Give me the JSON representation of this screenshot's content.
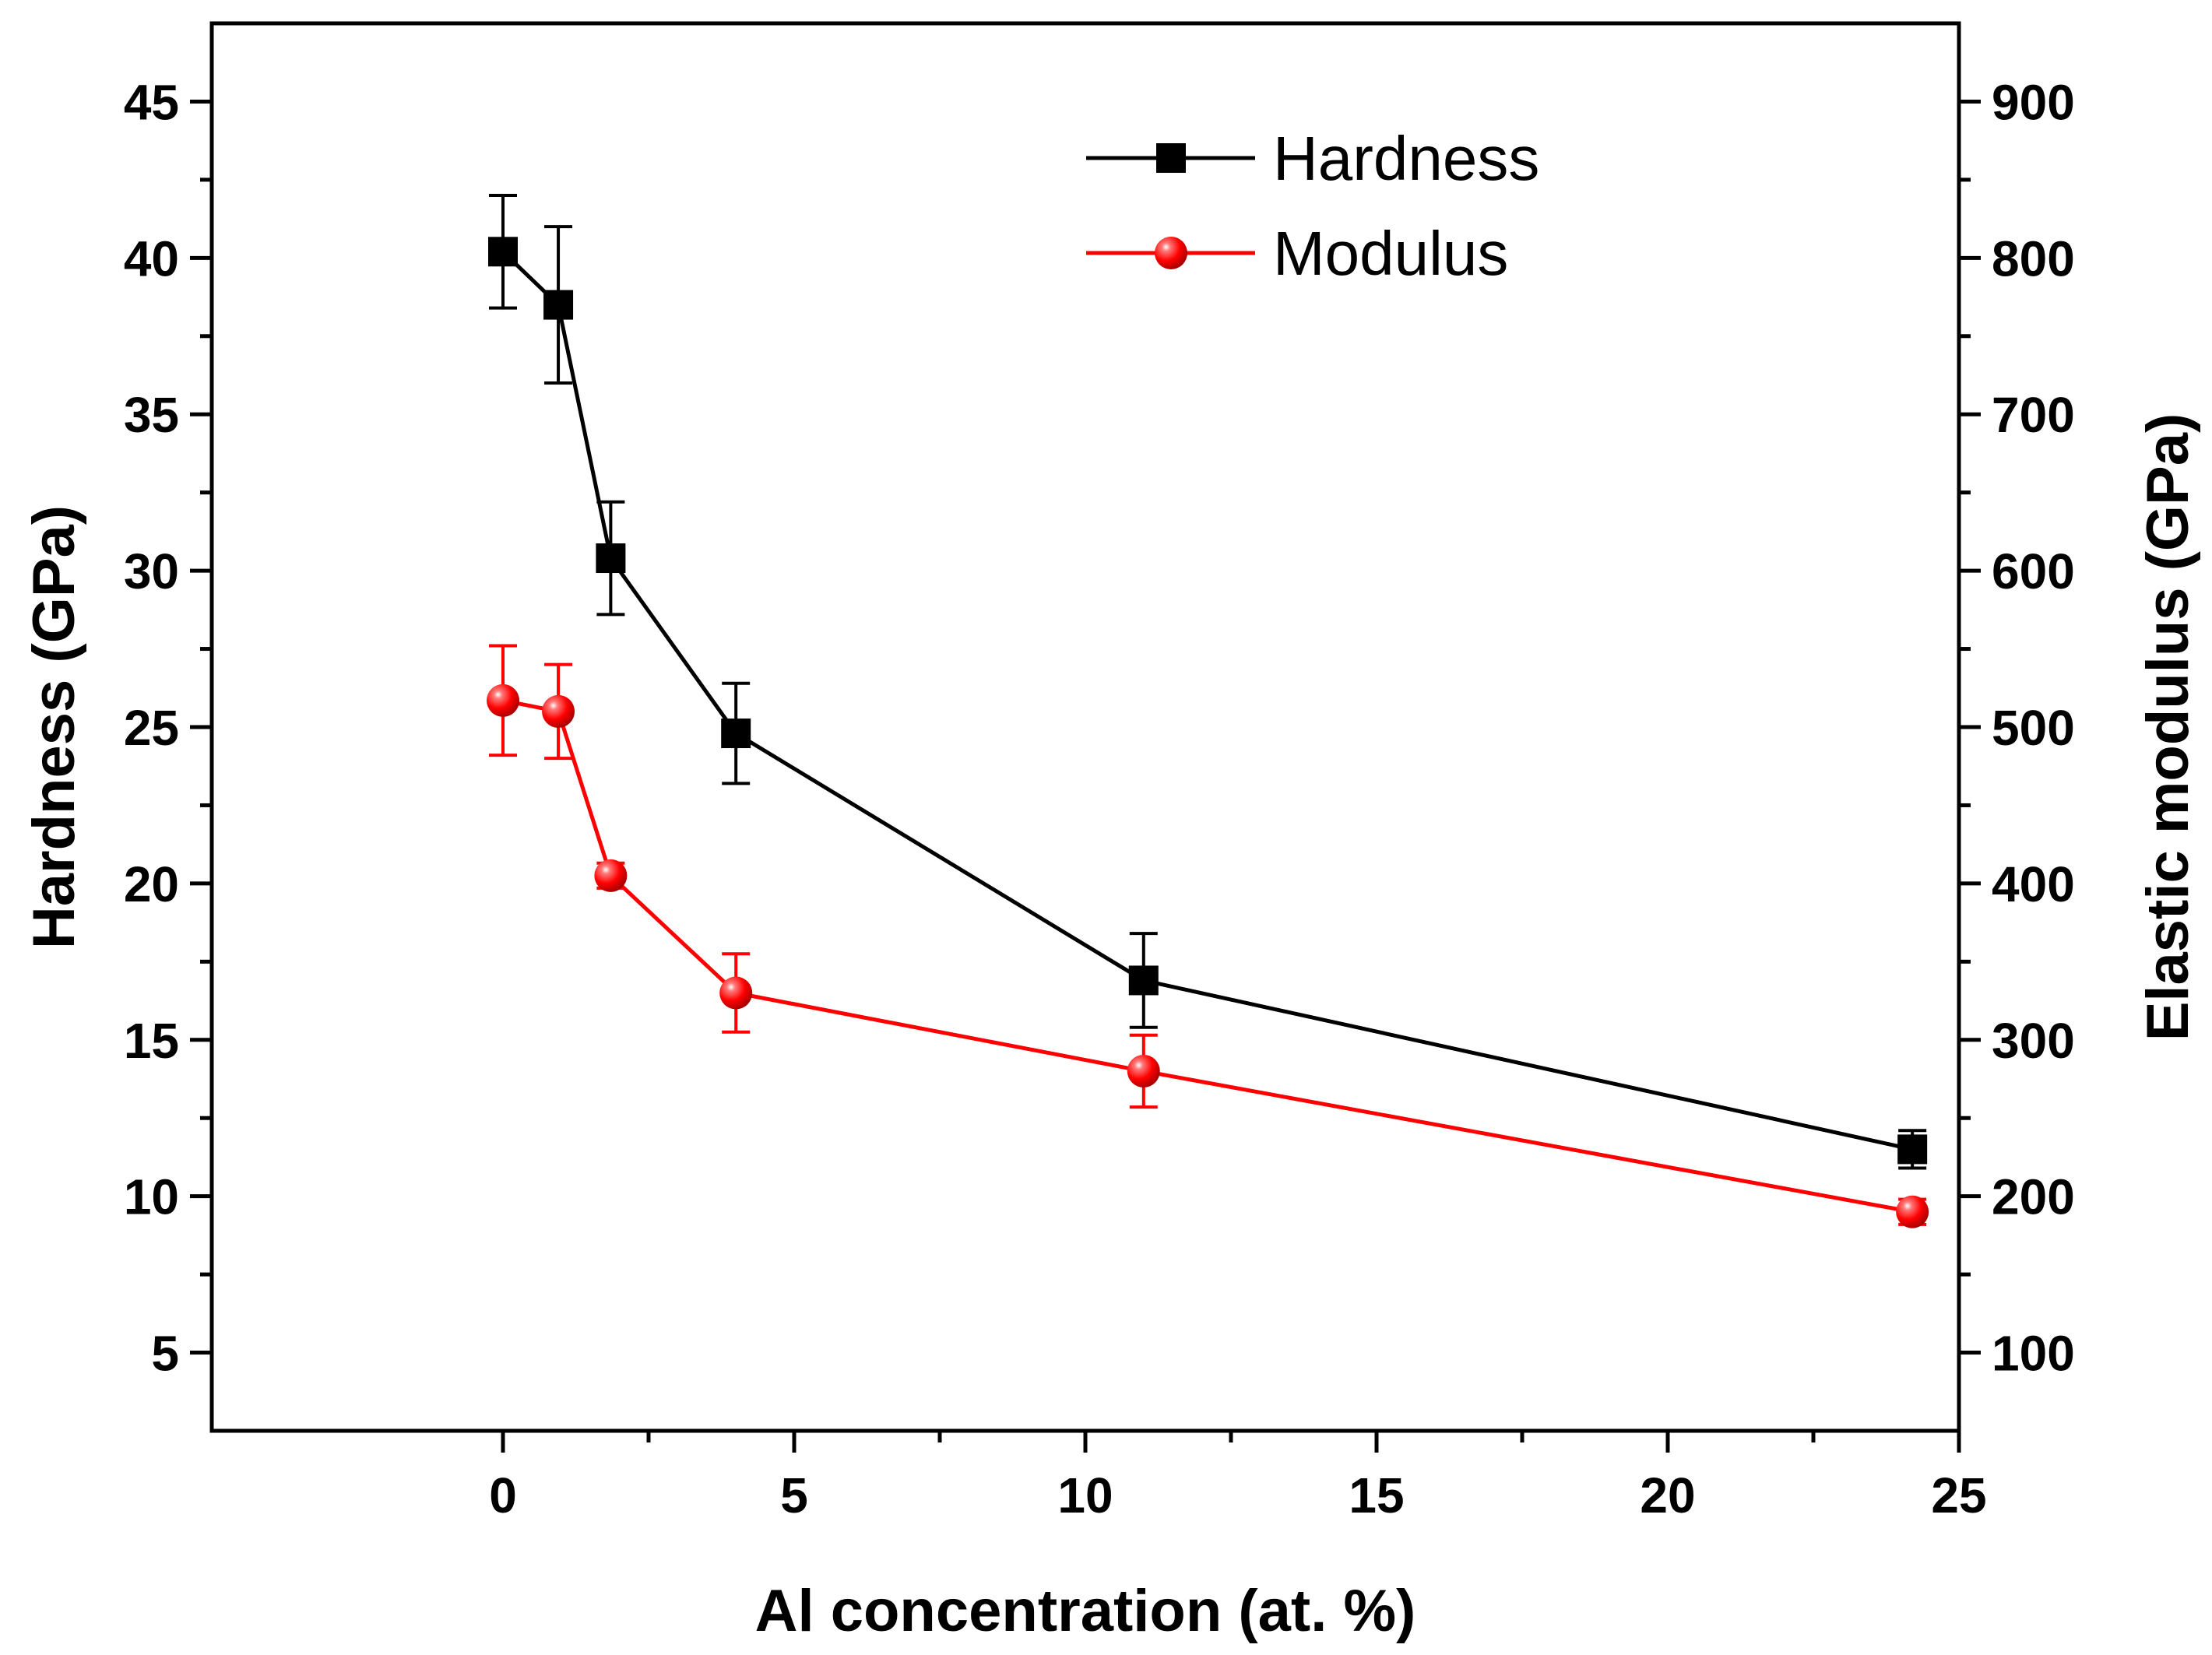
{
  "chart_data": {
    "type": "line",
    "title": "",
    "xlabel": "Al concentration (at. %)",
    "ylabel_left": "Hardness (GPa)",
    "ylabel_right": "Elastic modulus (GPa)",
    "xlim": [
      -5,
      25
    ],
    "ylim_left": [
      2.5,
      47.5
    ],
    "ylim_right": [
      50,
      950
    ],
    "xticks": [
      0,
      5,
      10,
      15,
      20,
      25
    ],
    "xtick_labels": [
      "0",
      "5",
      "10",
      "15",
      "20",
      "25"
    ],
    "yticks_left": [
      5,
      10,
      15,
      20,
      25,
      30,
      35,
      40,
      45
    ],
    "ytick_labels_left": [
      "5",
      "10",
      "15",
      "20",
      "25",
      "30",
      "35",
      "40",
      "45"
    ],
    "yticks_right": [
      100,
      200,
      300,
      400,
      500,
      600,
      700,
      800,
      900
    ],
    "ytick_labels_right": [
      "100",
      "200",
      "300",
      "400",
      "500",
      "600",
      "700",
      "800",
      "900"
    ],
    "grid": false,
    "legend_position": "top-right",
    "series": [
      {
        "name": "Hardness",
        "axis": "left",
        "color": "#000000",
        "marker": "square",
        "x": [
          0,
          0.95,
          1.85,
          4.0,
          11.0,
          24.2
        ],
        "y": [
          40.2,
          38.5,
          30.4,
          24.8,
          16.9,
          11.5
        ],
        "err": [
          1.8,
          2.5,
          1.8,
          1.6,
          1.5,
          0.6
        ]
      },
      {
        "name": "Modulus",
        "axis": "right",
        "color": "#ff0000",
        "marker": "circle",
        "x": [
          0,
          0.95,
          1.85,
          4.0,
          11.0,
          24.2
        ],
        "y": [
          517,
          510,
          405,
          330,
          280,
          190
        ],
        "err": [
          35,
          30,
          8,
          25,
          23,
          8
        ]
      }
    ]
  }
}
